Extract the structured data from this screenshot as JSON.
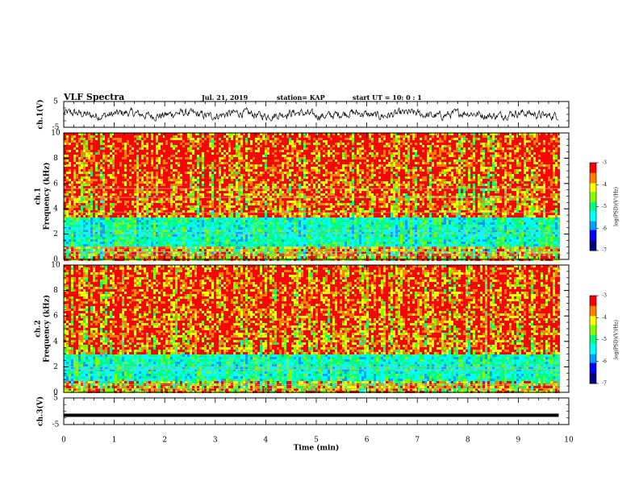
{
  "header": {
    "title": "VLF Spectra",
    "date": "Jul. 21, 2019",
    "station": "station= KAP",
    "start": "start UT = 10: 0 : 1"
  },
  "colors": {
    "colormap": [
      "#000080",
      "#0000ff",
      "#00a0ff",
      "#00ffff",
      "#00ff80",
      "#80ff00",
      "#ffff00",
      "#ff8000",
      "#ff0000",
      "#ffffff"
    ],
    "waveform": "#000000",
    "line_artifacts": "#b0b0b0"
  },
  "chart_data": [
    {
      "type": "line",
      "panel": "ch1-waveform",
      "ylabel": "ch.1(V)",
      "ylim": [
        -5,
        5
      ],
      "yticks": [
        "5",
        "-5"
      ],
      "xlim": [
        0,
        10
      ],
      "description_values": "noisy voltage trace oscillating roughly between -2 and +2 V over 0 to 9.8 min"
    },
    {
      "type": "heatmap",
      "panel": "ch1-spectrogram",
      "ylabel": "Frequency (kHz)",
      "channel_label": "ch.1",
      "ylim": [
        0,
        10
      ],
      "yticks": [
        "0",
        "2",
        "4",
        "6",
        "8",
        "10"
      ],
      "xlim": [
        0,
        10
      ],
      "data_extent_min": 9.8,
      "quiet_band_khz": [
        1.0,
        3.4
      ],
      "line_artifacts_khz": [
        0.35,
        0.6,
        0.95,
        2.0,
        2.3,
        3.7,
        4.9,
        5.6
      ],
      "colorbar": {
        "label": "log(PSD)(V²/Hz)",
        "range": [
          -7,
          -3
        ],
        "ticks": [
          "-3",
          "-4",
          "-5",
          "-6",
          "-7"
        ]
      }
    },
    {
      "type": "heatmap",
      "panel": "ch2-spectrogram",
      "ylabel": "Frequency (kHz)",
      "channel_label": "ch.2",
      "ylim": [
        0,
        10
      ],
      "yticks": [
        "0",
        "2",
        "4",
        "6",
        "8",
        "10"
      ],
      "xlim": [
        0,
        10
      ],
      "data_extent_min": 9.8,
      "quiet_band_khz": [
        0.8,
        3.0
      ],
      "line_artifacts_khz": [
        0.3,
        0.6,
        1.8,
        2.0
      ],
      "colorbar": {
        "label": "log(PSD)(V²/Hz)",
        "range": [
          -7,
          -3
        ],
        "ticks": [
          "-3",
          "-4",
          "-5",
          "-6",
          "-7"
        ]
      }
    },
    {
      "type": "line",
      "panel": "ch3-waveform",
      "ylabel": "ch.3(V)",
      "ylim": [
        -5,
        5
      ],
      "yticks": [
        "5",
        "-5"
      ],
      "xlim": [
        0,
        10
      ],
      "constant_value": -1.5
    }
  ],
  "xaxis": {
    "label": "Time (min)",
    "ticks": [
      "0",
      "1",
      "2",
      "3",
      "4",
      "5",
      "6",
      "7",
      "8",
      "9",
      "10"
    ]
  }
}
